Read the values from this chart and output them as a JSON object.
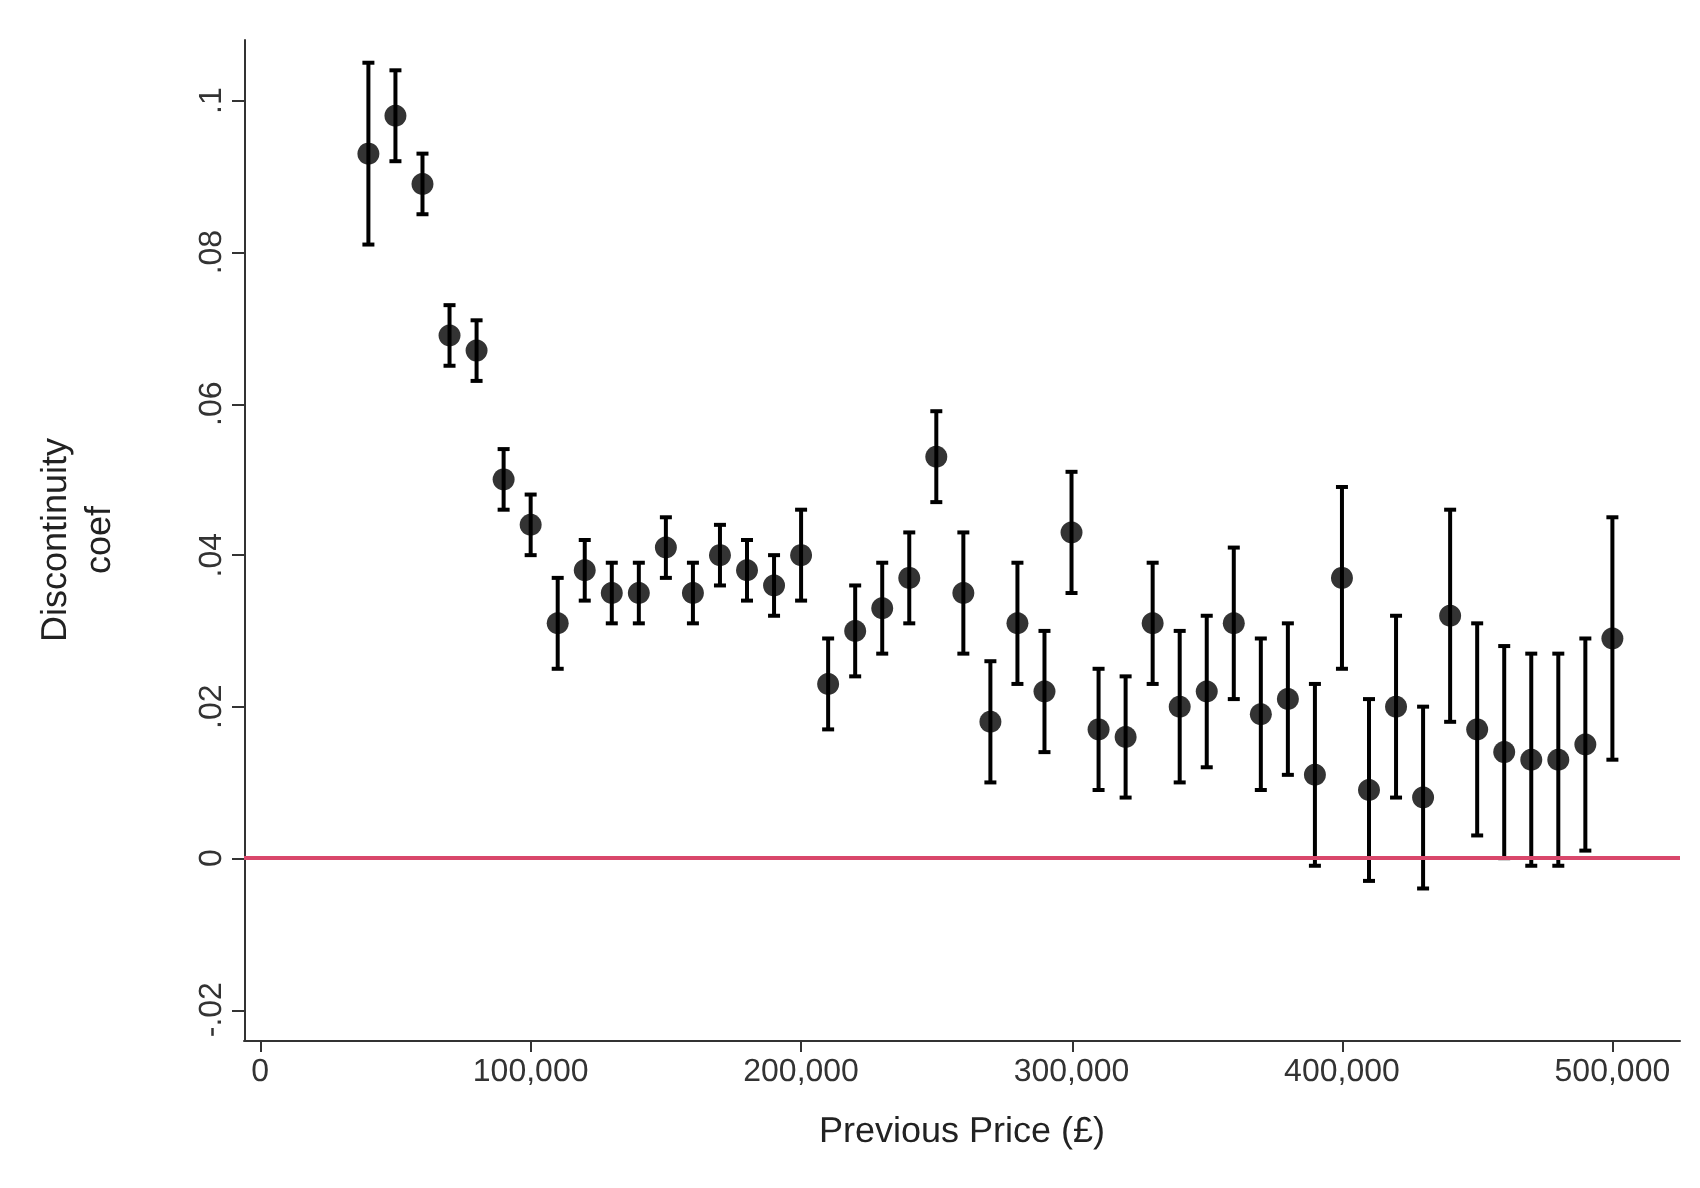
{
  "chart_data": {
    "type": "scatter",
    "xlabel": "Previous Price (£)",
    "ylabel": "Discontinuity coef",
    "x": [
      40000,
      50000,
      60000,
      70000,
      80000,
      90000,
      100000,
      110000,
      120000,
      130000,
      140000,
      150000,
      160000,
      170000,
      180000,
      190000,
      200000,
      210000,
      220000,
      230000,
      240000,
      250000,
      260000,
      270000,
      280000,
      290000,
      300000,
      310000,
      320000,
      330000,
      340000,
      350000,
      360000,
      370000,
      380000,
      390000,
      400000,
      410000,
      420000,
      430000,
      440000,
      450000,
      460000,
      470000,
      480000,
      490000,
      500000
    ],
    "series": [
      {
        "color": "#000000",
        "values": [
          0.093,
          0.098,
          0.089,
          0.069,
          0.067,
          0.05,
          0.044,
          0.031,
          0.038,
          0.035,
          0.035,
          0.041,
          0.035,
          0.04,
          0.038,
          0.036,
          0.04,
          0.023,
          0.03,
          0.033,
          0.037,
          0.053,
          0.035,
          0.018,
          0.031,
          0.022,
          0.043,
          0.017,
          0.016,
          0.031,
          0.02,
          0.022,
          0.031,
          0.019,
          0.021,
          0.011,
          0.037,
          0.009,
          0.02,
          0.008,
          0.032,
          0.017,
          0.014,
          0.013,
          0.013,
          0.015,
          0.029
        ],
        "errors": [
          [
            0.081,
            0.105
          ],
          [
            0.092,
            0.104
          ],
          [
            0.085,
            0.093
          ],
          [
            0.065,
            0.073
          ],
          [
            0.063,
            0.071
          ],
          [
            0.046,
            0.054
          ],
          [
            0.04,
            0.048
          ],
          [
            0.025,
            0.037
          ],
          [
            0.034,
            0.042
          ],
          [
            0.031,
            0.039
          ],
          [
            0.031,
            0.039
          ],
          [
            0.037,
            0.045
          ],
          [
            0.031,
            0.039
          ],
          [
            0.036,
            0.044
          ],
          [
            0.034,
            0.042
          ],
          [
            0.032,
            0.04
          ],
          [
            0.034,
            0.046
          ],
          [
            0.017,
            0.029
          ],
          [
            0.024,
            0.036
          ],
          [
            0.027,
            0.039
          ],
          [
            0.031,
            0.043
          ],
          [
            0.047,
            0.059
          ],
          [
            0.027,
            0.043
          ],
          [
            0.01,
            0.026
          ],
          [
            0.023,
            0.039
          ],
          [
            0.014,
            0.03
          ],
          [
            0.035,
            0.051
          ],
          [
            0.009,
            0.025
          ],
          [
            0.008,
            0.024
          ],
          [
            0.023,
            0.039
          ],
          [
            0.01,
            0.03
          ],
          [
            0.012,
            0.032
          ],
          [
            0.021,
            0.041
          ],
          [
            0.009,
            0.029
          ],
          [
            0.011,
            0.031
          ],
          [
            -0.001,
            0.023
          ],
          [
            0.025,
            0.049
          ],
          [
            -0.003,
            0.021
          ],
          [
            0.008,
            0.032
          ],
          [
            -0.004,
            0.02
          ],
          [
            0.018,
            0.046
          ],
          [
            0.003,
            0.031
          ],
          [
            0.0,
            0.028
          ],
          [
            -0.001,
            0.027
          ],
          [
            -0.001,
            0.027
          ],
          [
            0.001,
            0.029
          ],
          [
            0.013,
            0.045
          ]
        ]
      }
    ],
    "xlim": [
      -6000,
      525000
    ],
    "xticks": [
      0,
      {
        "value": 100000,
        "label": "100,000"
      },
      {
        "value": 200000,
        "label": "200,000"
      },
      {
        "value": 300000,
        "label": "300,000"
      },
      {
        "value": 400000,
        "label": "400,000"
      },
      {
        "value": 500000,
        "label": "500,000"
      }
    ],
    "ylim": [
      -0.024,
      0.108
    ],
    "yticks": [
      {
        "value": -0.02,
        "label": "-.02"
      },
      0,
      {
        "value": 0.02,
        "label": ".02"
      },
      {
        "value": 0.04,
        "label": ".04"
      },
      {
        "value": 0.06,
        "label": ".06"
      },
      {
        "value": 0.08,
        "label": ".08"
      },
      {
        "value": 0.1,
        "label": ".1"
      }
    ],
    "ref_lines": [
      {
        "axis": "y",
        "value": 0,
        "color": "#d9476b"
      }
    ],
    "grid": false,
    "marker": "circle"
  }
}
